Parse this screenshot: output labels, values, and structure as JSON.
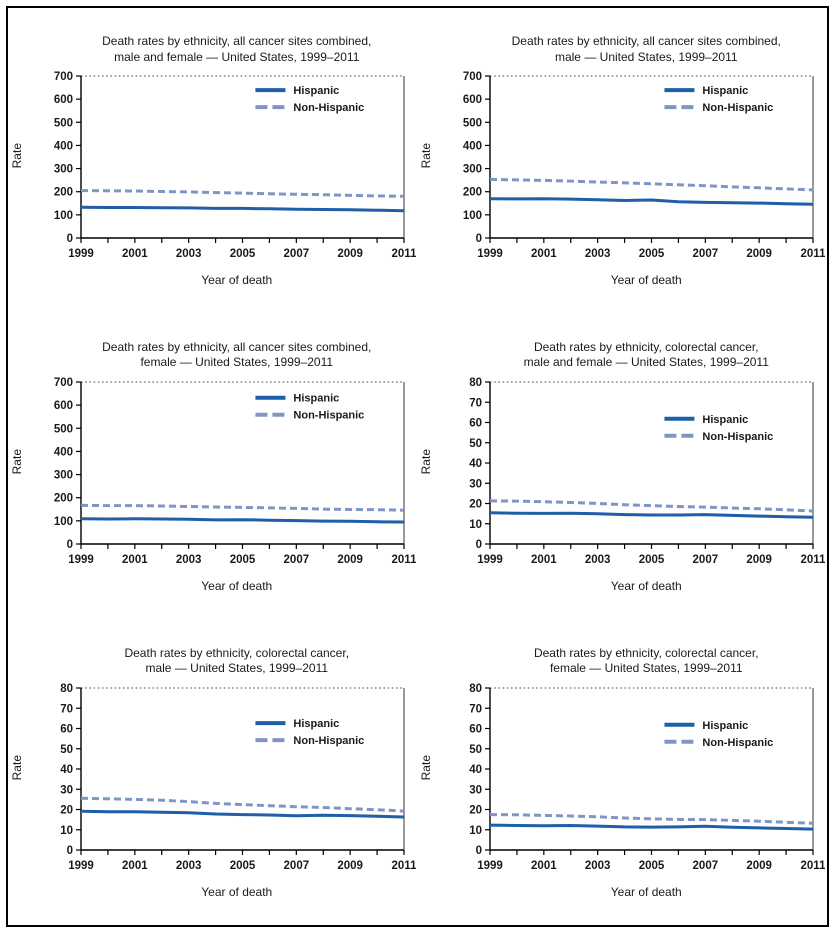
{
  "colors": {
    "hispanic_line": "#1f5fa8",
    "non_hispanic_line": "#8095c7",
    "axis": "#000000",
    "frame": "#000000",
    "text": "#1a1a1a"
  },
  "chart_data": [
    {
      "type": "line",
      "title_lines": [
        "Death rates by ethnicity, all cancer sites combined,",
        "male and female — United States, 1999–2011"
      ],
      "xlabel": "Year of death",
      "ylabel": "Rate",
      "x": [
        1999,
        2000,
        2001,
        2002,
        2003,
        2004,
        2005,
        2006,
        2007,
        2008,
        2009,
        2010,
        2011
      ],
      "x_label_step": 2,
      "ylim": [
        0,
        700
      ],
      "ytick_step": 100,
      "grid": false,
      "legend_pos_f": [
        0.54,
        0.05
      ],
      "series": [
        {
          "name": "Hispanic",
          "style": "solid",
          "color_key": "hispanic_line",
          "values": [
            133,
            132,
            132,
            131,
            130,
            128,
            128,
            126,
            124,
            123,
            122,
            120,
            118
          ]
        },
        {
          "name": "Non-Hispanic",
          "style": "dashed",
          "color_key": "non_hispanic_line",
          "values": [
            205,
            204,
            203,
            201,
            199,
            196,
            194,
            191,
            189,
            187,
            184,
            182,
            180
          ]
        }
      ]
    },
    {
      "type": "line",
      "title_lines": [
        "Death rates by ethnicity, all cancer sites combined,",
        "male — United States, 1999–2011"
      ],
      "xlabel": "Year of death",
      "ylabel": "Rate",
      "x": [
        1999,
        2000,
        2001,
        2002,
        2003,
        2004,
        2005,
        2006,
        2007,
        2008,
        2009,
        2010,
        2011
      ],
      "x_label_step": 2,
      "ylim": [
        0,
        700
      ],
      "ytick_step": 100,
      "grid": false,
      "legend_pos_f": [
        0.54,
        0.05
      ],
      "series": [
        {
          "name": "Hispanic",
          "style": "solid",
          "color_key": "hispanic_line",
          "values": [
            170,
            169,
            170,
            168,
            165,
            162,
            164,
            157,
            154,
            152,
            151,
            148,
            146
          ]
        },
        {
          "name": "Non-Hispanic",
          "style": "dashed",
          "color_key": "non_hispanic_line",
          "values": [
            253,
            251,
            249,
            246,
            242,
            238,
            234,
            230,
            226,
            221,
            217,
            212,
            208
          ]
        }
      ]
    },
    {
      "type": "line",
      "title_lines": [
        "Death rates by ethnicity, all cancer sites combined,",
        "female — United States, 1999–2011"
      ],
      "xlabel": "Year of death",
      "ylabel": "Rate",
      "x": [
        1999,
        2000,
        2001,
        2002,
        2003,
        2004,
        2005,
        2006,
        2007,
        2008,
        2009,
        2010,
        2011
      ],
      "x_label_step": 2,
      "ylim": [
        0,
        700
      ],
      "ytick_step": 100,
      "grid": false,
      "legend_pos_f": [
        0.54,
        0.06
      ],
      "series": [
        {
          "name": "Hispanic",
          "style": "solid",
          "color_key": "hispanic_line",
          "values": [
            109,
            108,
            109,
            108,
            107,
            104,
            105,
            103,
            101,
            99,
            98,
            96,
            95
          ]
        },
        {
          "name": "Non-Hispanic",
          "style": "dashed",
          "color_key": "non_hispanic_line",
          "values": [
            167,
            166,
            166,
            164,
            162,
            160,
            158,
            156,
            154,
            151,
            149,
            148,
            146
          ]
        }
      ]
    },
    {
      "type": "line",
      "title_lines": [
        "Death rates by ethnicity, colorectal cancer,",
        "male and female — United States, 1999–2011"
      ],
      "xlabel": "Year of death",
      "ylabel": "Rate",
      "x": [
        1999,
        2000,
        2001,
        2002,
        2003,
        2004,
        2005,
        2006,
        2007,
        2008,
        2009,
        2010,
        2011
      ],
      "x_label_step": 2,
      "ylim": [
        0,
        80
      ],
      "ytick_step": 10,
      "grid": false,
      "legend_pos_f": [
        0.54,
        0.19
      ],
      "series": [
        {
          "name": "Hispanic",
          "style": "solid",
          "color_key": "hispanic_line",
          "values": [
            15.4,
            15.2,
            15.1,
            15.2,
            14.9,
            14.5,
            14.3,
            14.3,
            14.5,
            14.1,
            13.8,
            13.5,
            13.2
          ]
        },
        {
          "name": "Non-Hispanic",
          "style": "dashed",
          "color_key": "non_hispanic_line",
          "values": [
            21.3,
            21.2,
            20.9,
            20.5,
            20.0,
            19.4,
            18.9,
            18.5,
            18.2,
            17.8,
            17.4,
            16.9,
            16.3
          ]
        }
      ]
    },
    {
      "type": "line",
      "title_lines": [
        "Death rates by ethnicity, colorectal cancer,",
        "male — United States, 1999–2011"
      ],
      "xlabel": "Year of death",
      "ylabel": "Rate",
      "x": [
        1999,
        2000,
        2001,
        2002,
        2003,
        2004,
        2005,
        2006,
        2007,
        2008,
        2009,
        2010,
        2011
      ],
      "x_label_step": 2,
      "ylim": [
        0,
        80
      ],
      "ytick_step": 10,
      "grid": false,
      "legend_pos_f": [
        0.54,
        0.18
      ],
      "series": [
        {
          "name": "Hispanic",
          "style": "solid",
          "color_key": "hispanic_line",
          "values": [
            19.1,
            18.9,
            18.9,
            18.6,
            18.4,
            17.8,
            17.5,
            17.3,
            16.9,
            17.2,
            17.0,
            16.7,
            16.3
          ]
        },
        {
          "name": "Non-Hispanic",
          "style": "dashed",
          "color_key": "non_hispanic_line",
          "values": [
            25.6,
            25.3,
            25.0,
            24.6,
            23.9,
            23.0,
            22.4,
            21.9,
            21.4,
            21.0,
            20.4,
            19.9,
            19.2
          ]
        }
      ]
    },
    {
      "type": "line",
      "title_lines": [
        "Death rates by ethnicity, colorectal cancer,",
        "female — United States, 1999–2011"
      ],
      "xlabel": "Year of death",
      "ylabel": "Rate",
      "x": [
        1999,
        2000,
        2001,
        2002,
        2003,
        2004,
        2005,
        2006,
        2007,
        2008,
        2009,
        2010,
        2011
      ],
      "x_label_step": 2,
      "ylim": [
        0,
        80
      ],
      "ytick_step": 10,
      "grid": false,
      "legend_pos_f": [
        0.54,
        0.19
      ],
      "series": [
        {
          "name": "Hispanic",
          "style": "solid",
          "color_key": "hispanic_line",
          "values": [
            12.3,
            12.1,
            12.0,
            12.1,
            11.8,
            11.4,
            11.3,
            11.4,
            11.7,
            11.2,
            10.9,
            10.6,
            10.3
          ]
        },
        {
          "name": "Non-Hispanic",
          "style": "dashed",
          "color_key": "non_hispanic_line",
          "values": [
            17.5,
            17.4,
            17.1,
            16.8,
            16.4,
            15.8,
            15.4,
            15.1,
            15.0,
            14.6,
            14.2,
            13.7,
            13.2
          ]
        }
      ]
    }
  ]
}
